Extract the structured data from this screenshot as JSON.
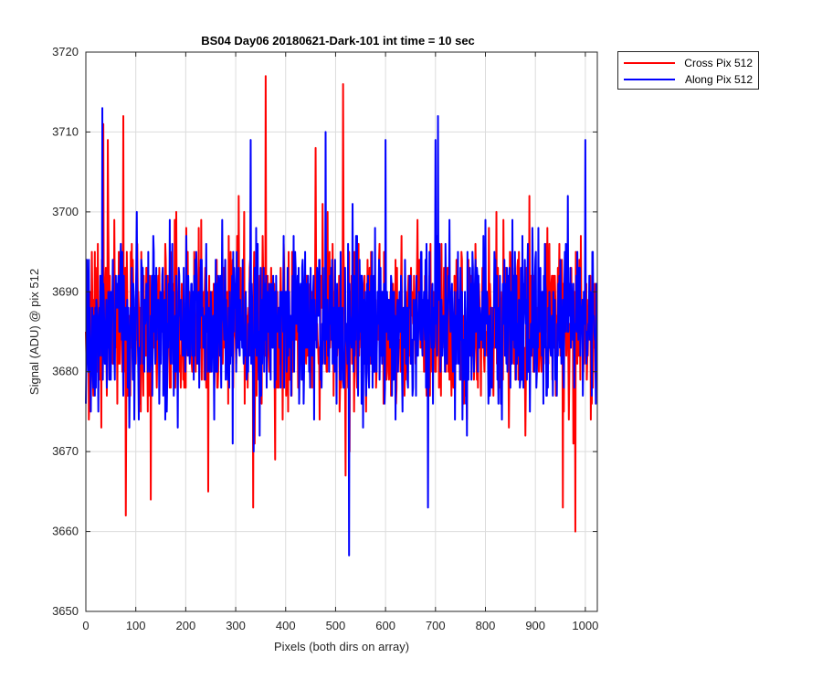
{
  "chart_data": {
    "type": "line",
    "title": "BS04 Day06 20180621-Dark-101 int time = 10 sec",
    "xlabel": "Pixels (both dirs on array)",
    "ylabel": "Signal (ADU) @ pix 512",
    "xlim": [
      0,
      1024
    ],
    "ylim": [
      3650,
      3720
    ],
    "xticks": [
      0,
      100,
      200,
      300,
      400,
      500,
      600,
      700,
      800,
      900,
      1000
    ],
    "yticks": [
      3650,
      3660,
      3670,
      3680,
      3690,
      3700,
      3710,
      3720
    ],
    "grid": true,
    "legend_position": "outside-top-right",
    "series": [
      {
        "name": "Cross Pix 512",
        "color": "#ff0000",
        "mean": 3686,
        "std": 5.5,
        "noise_seed": 17,
        "n_points": 1024,
        "extremes": [
          {
            "x": 35,
            "y": 3711
          },
          {
            "x": 44,
            "y": 3709
          },
          {
            "x": 75,
            "y": 3712
          },
          {
            "x": 80,
            "y": 3662
          },
          {
            "x": 130,
            "y": 3664
          },
          {
            "x": 245,
            "y": 3665
          },
          {
            "x": 335,
            "y": 3663
          },
          {
            "x": 360,
            "y": 3717
          },
          {
            "x": 460,
            "y": 3708
          },
          {
            "x": 515,
            "y": 3716
          },
          {
            "x": 520,
            "y": 3667
          },
          {
            "x": 955,
            "y": 3663
          },
          {
            "x": 980,
            "y": 3660
          }
        ]
      },
      {
        "name": "Along Pix 512",
        "color": "#0000ff",
        "mean": 3686,
        "std": 5.5,
        "noise_seed": 91,
        "n_points": 1024,
        "extremes": [
          {
            "x": 33,
            "y": 3713
          },
          {
            "x": 330,
            "y": 3709
          },
          {
            "x": 480,
            "y": 3710
          },
          {
            "x": 527,
            "y": 3657
          },
          {
            "x": 600,
            "y": 3709
          },
          {
            "x": 700,
            "y": 3709
          },
          {
            "x": 705,
            "y": 3712
          },
          {
            "x": 685,
            "y": 3663
          },
          {
            "x": 1000,
            "y": 3709
          }
        ]
      }
    ]
  }
}
